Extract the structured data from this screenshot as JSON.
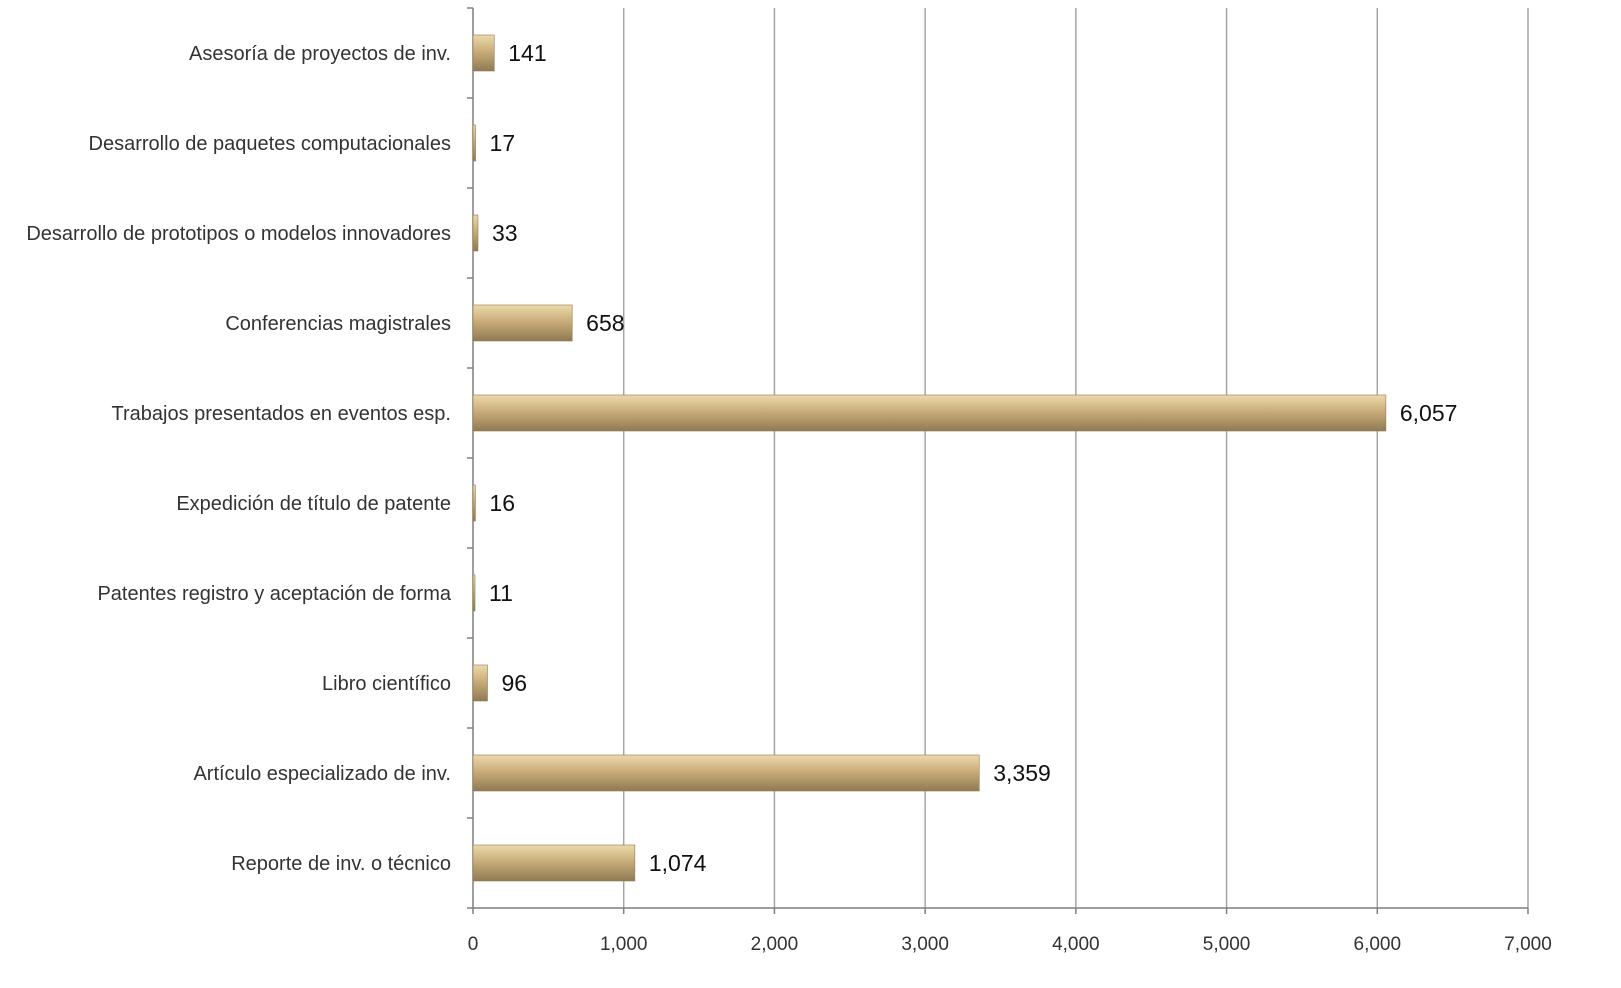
{
  "chart_data": {
    "type": "bar",
    "orientation": "horizontal",
    "categories": [
      "Asesoría de proyectos de inv.",
      "Desarrollo de paquetes computacionales",
      "Desarrollo de prototipos o modelos innovadores",
      "Conferencias magistrales",
      "Trabajos presentados en eventos esp.",
      "Expedición de título de patente",
      "Patentes registro y aceptación de forma",
      "Libro científico",
      "Artículo especializado de inv.",
      "Reporte de inv. o técnico"
    ],
    "values": [
      141,
      17,
      33,
      658,
      6057,
      16,
      11,
      96,
      3359,
      1074
    ],
    "data_labels": [
      "141",
      "17",
      "33",
      "658",
      "6,057",
      "16",
      "11",
      "96",
      "3,359",
      "1,074"
    ],
    "xlim": [
      0,
      7000
    ],
    "x_ticks": [
      0,
      1000,
      2000,
      3000,
      4000,
      5000,
      6000,
      7000
    ],
    "x_tick_labels": [
      "0",
      "1,000",
      "2,000",
      "3,000",
      "4,000",
      "5,000",
      "6,000",
      "7,000"
    ],
    "grid": "vertical",
    "legend": "none",
    "title": "",
    "xlabel": "",
    "ylabel": "",
    "colors": {
      "bar_light": "#ecd9aa",
      "bar_mid": "#c9ad7a",
      "bar_dark": "#8f7a52",
      "grid": "#a6a6a6",
      "axis": "#7f7f7f"
    }
  }
}
